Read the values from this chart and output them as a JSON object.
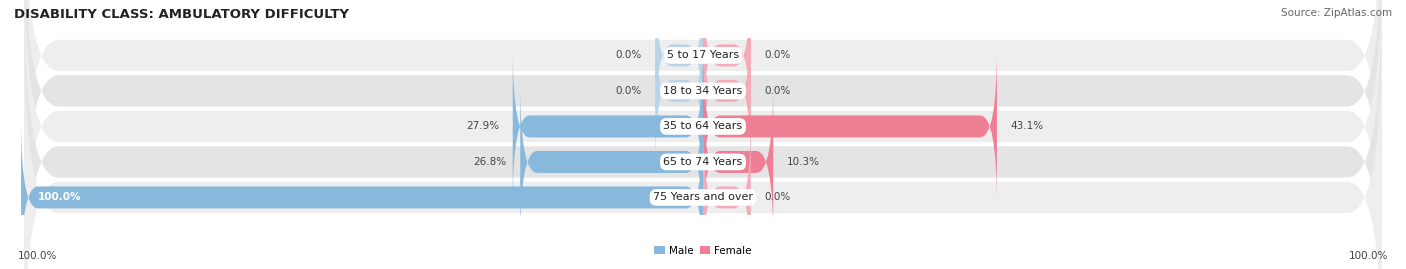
{
  "title": "DISABILITY CLASS: AMBULATORY DIFFICULTY",
  "source": "Source: ZipAtlas.com",
  "categories": [
    "5 to 17 Years",
    "18 to 34 Years",
    "35 to 64 Years",
    "65 to 74 Years",
    "75 Years and over"
  ],
  "male_values": [
    0.0,
    0.0,
    27.9,
    26.8,
    100.0
  ],
  "female_values": [
    0.0,
    0.0,
    43.1,
    10.3,
    0.0
  ],
  "male_color": "#88b8dc",
  "female_color": "#ee7f95",
  "male_color_light": "#b8d4ea",
  "female_color_light": "#f4aab8",
  "row_bg_colors": [
    "#eeeeee",
    "#e4e4e4"
  ],
  "max_val": 100.0,
  "min_stub": 7.0,
  "legend_male": "Male",
  "legend_female": "Female",
  "title_fontsize": 9.5,
  "label_fontsize": 7.5,
  "category_fontsize": 8.0,
  "footer_fontsize": 7.5,
  "source_fontsize": 7.5,
  "bar_height": 0.62,
  "background_color": "#ffffff"
}
